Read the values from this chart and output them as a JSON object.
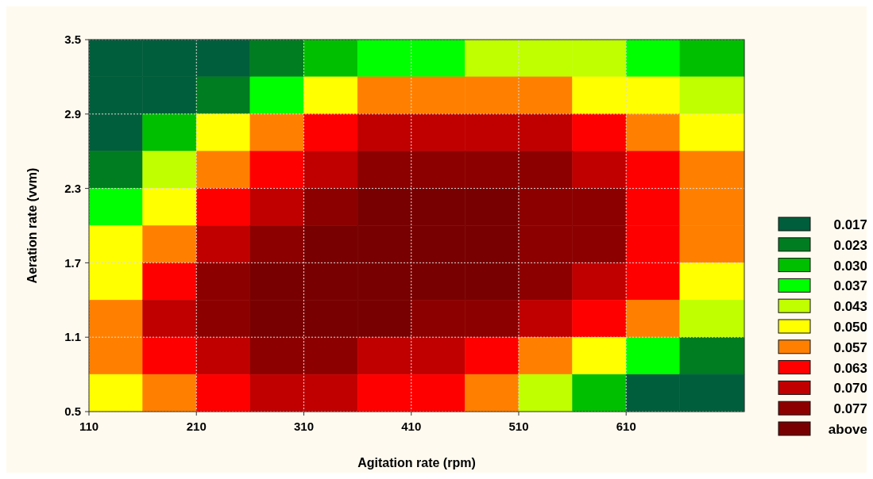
{
  "chart_data": {
    "type": "heatmap",
    "xlabel": "Agitation rate (rpm)",
    "ylabel": "Aeration rate (vvm)",
    "x": [
      135,
      185,
      235,
      285,
      335,
      385,
      435,
      485,
      535,
      585,
      635,
      685
    ],
    "xlim": [
      110,
      720
    ],
    "xticks": [
      110,
      210,
      310,
      410,
      510,
      610
    ],
    "ylim": [
      0.5,
      3.5
    ],
    "yticks": [
      0.5,
      1.1,
      1.7,
      2.3,
      2.9,
      3.5
    ],
    "cells": [
      [
        0.017,
        0.017,
        0.017,
        0.023,
        0.03,
        0.037,
        0.037,
        0.043,
        0.043,
        0.043,
        0.037,
        0.03
      ],
      [
        0.017,
        0.017,
        0.023,
        0.037,
        0.05,
        0.057,
        0.057,
        0.057,
        0.057,
        0.05,
        0.05,
        0.043
      ],
      [
        0.017,
        0.03,
        0.05,
        0.057,
        0.063,
        0.07,
        0.07,
        0.07,
        0.07,
        0.063,
        0.057,
        0.05
      ],
      [
        0.023,
        0.043,
        0.057,
        0.063,
        0.07,
        0.077,
        0.077,
        0.077,
        0.077,
        0.07,
        0.063,
        0.057
      ],
      [
        0.037,
        0.05,
        0.063,
        0.07,
        0.077,
        0.08,
        0.08,
        0.08,
        0.077,
        0.077,
        0.063,
        0.057
      ],
      [
        0.05,
        0.057,
        0.07,
        0.077,
        0.08,
        0.08,
        0.08,
        0.08,
        0.077,
        0.077,
        0.063,
        0.057
      ],
      [
        0.05,
        0.063,
        0.077,
        0.08,
        0.08,
        0.08,
        0.08,
        0.08,
        0.077,
        0.07,
        0.063,
        0.05
      ],
      [
        0.057,
        0.07,
        0.077,
        0.08,
        0.08,
        0.08,
        0.077,
        0.077,
        0.07,
        0.063,
        0.057,
        0.043
      ],
      [
        0.057,
        0.063,
        0.07,
        0.077,
        0.077,
        0.07,
        0.07,
        0.063,
        0.057,
        0.05,
        0.037,
        0.023
      ],
      [
        0.05,
        0.057,
        0.063,
        0.07,
        0.07,
        0.063,
        0.063,
        0.057,
        0.043,
        0.03,
        0.017,
        0.017
      ]
    ],
    "cticks": [
      {
        "value": 0.017,
        "label": "0.017"
      },
      {
        "value": 0.023,
        "label": "0.023"
      },
      {
        "value": 0.03,
        "label": "0.030"
      },
      {
        "value": 0.037,
        "label": "0.037"
      },
      {
        "value": 0.043,
        "label": "0.043"
      },
      {
        "value": 0.05,
        "label": "0.050"
      },
      {
        "value": 0.057,
        "label": "0.057"
      },
      {
        "value": 0.063,
        "label": "0.063"
      },
      {
        "value": 0.07,
        "label": "0.070"
      },
      {
        "value": 0.077,
        "label": "0.077"
      },
      {
        "value": 0.084,
        "label": "above"
      }
    ],
    "colors": [
      "#005e3c",
      "#007d20",
      "#00be00",
      "#00ff00",
      "#c0ff00",
      "#ffff00",
      "#ff8000",
      "#ff0000",
      "#c00000",
      "#8c0000",
      "#780000"
    ],
    "grid": true
  }
}
